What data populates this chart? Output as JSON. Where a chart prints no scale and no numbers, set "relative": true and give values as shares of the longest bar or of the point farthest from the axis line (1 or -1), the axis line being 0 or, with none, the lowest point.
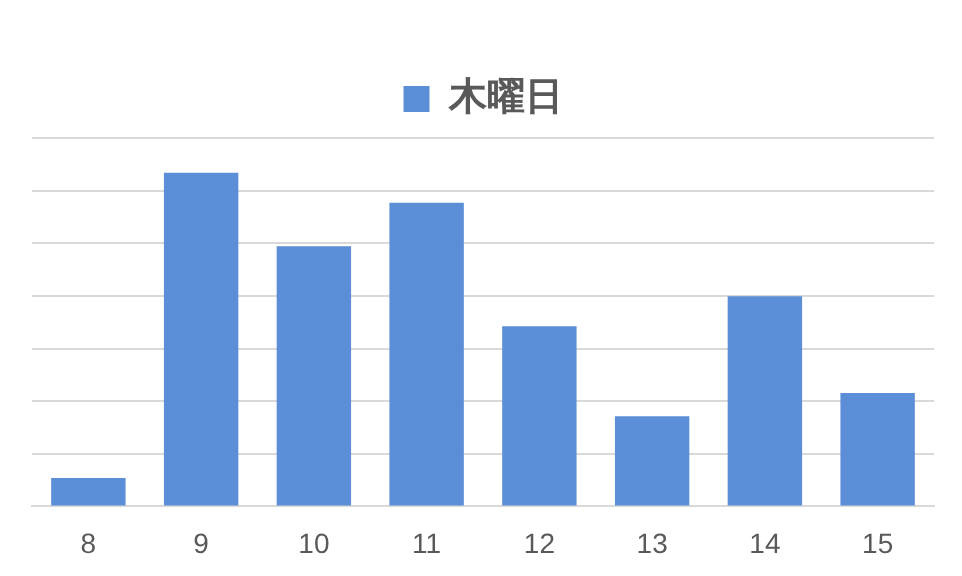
{
  "chart_data": {
    "type": "bar",
    "relative": true,
    "categories": [
      "8",
      "9",
      "10",
      "11",
      "12",
      "13",
      "14",
      "15"
    ],
    "series": [
      {
        "name": "木曜日",
        "color": "#5b8ed6",
        "values": [
          0.085,
          1,
          0.78,
          0.91,
          0.54,
          0.27,
          0.63,
          0.34
        ]
      }
    ],
    "grid": "y",
    "legend": "top"
  }
}
